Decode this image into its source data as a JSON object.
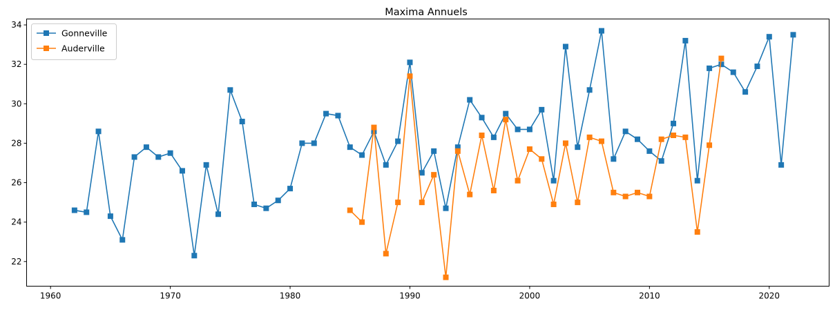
{
  "chart_data": {
    "type": "line",
    "title": "Maxima Annuels",
    "xlabel": "",
    "ylabel": "",
    "xlim": [
      1958.0,
      2025.0
    ],
    "ylim": [
      20.75,
      34.3
    ],
    "xticks": [
      1960,
      1970,
      1980,
      1990,
      2000,
      2010,
      2020
    ],
    "yticks": [
      22,
      24,
      26,
      28,
      30,
      32,
      34
    ],
    "grid": false,
    "legend_position": "top-left",
    "marker": "square",
    "series": [
      {
        "name": "Gonneville",
        "color": "#1f77b4",
        "x": [
          1962,
          1963,
          1964,
          1965,
          1966,
          1967,
          1968,
          1969,
          1970,
          1971,
          1972,
          1973,
          1974,
          1975,
          1976,
          1977,
          1978,
          1979,
          1980,
          1981,
          1982,
          1983,
          1984,
          1985,
          1986,
          1987,
          1988,
          1989,
          1990,
          1991,
          1992,
          1993,
          1994,
          1995,
          1996,
          1997,
          1998,
          1999,
          2000,
          2001,
          2002,
          2003,
          2004,
          2005,
          2006,
          2007,
          2008,
          2009,
          2010,
          2011,
          2012,
          2013,
          2014,
          2015,
          2016,
          2017,
          2018,
          2019,
          2020,
          2021,
          2022
        ],
        "y": [
          24.6,
          24.5,
          28.6,
          24.3,
          23.1,
          27.3,
          27.8,
          27.3,
          27.5,
          26.6,
          22.3,
          26.9,
          24.4,
          30.7,
          29.1,
          24.9,
          24.7,
          25.1,
          25.7,
          28.0,
          28.0,
          29.5,
          29.4,
          27.8,
          27.4,
          28.6,
          26.9,
          28.1,
          32.1,
          26.5,
          27.6,
          24.7,
          27.8,
          30.2,
          29.3,
          28.3,
          29.5,
          28.7,
          28.7,
          29.7,
          26.1,
          32.9,
          27.8,
          30.7,
          33.7,
          27.2,
          28.6,
          28.2,
          27.6,
          27.1,
          29.0,
          33.2,
          26.1,
          31.8,
          32.0,
          31.6,
          30.6,
          31.9,
          33.4,
          26.9,
          33.5
        ]
      },
      {
        "name": "Auderville",
        "color": "#ff7f0e",
        "x": [
          1985,
          1986,
          1987,
          1988,
          1989,
          1990,
          1991,
          1992,
          1993,
          1994,
          1995,
          1996,
          1997,
          1998,
          1999,
          2000,
          2001,
          2002,
          2003,
          2004,
          2005,
          2006,
          2007,
          2008,
          2009,
          2010,
          2011,
          2012,
          2013,
          2014,
          2015,
          2016
        ],
        "y": [
          24.6,
          24.0,
          28.8,
          22.4,
          25.0,
          31.4,
          25.0,
          26.4,
          21.2,
          27.6,
          25.4,
          28.4,
          25.6,
          29.2,
          26.1,
          27.7,
          27.2,
          24.9,
          28.0,
          25.0,
          28.3,
          28.1,
          25.5,
          25.3,
          25.5,
          25.3,
          28.2,
          28.4,
          28.3,
          23.5,
          27.9,
          32.3
        ]
      }
    ]
  }
}
